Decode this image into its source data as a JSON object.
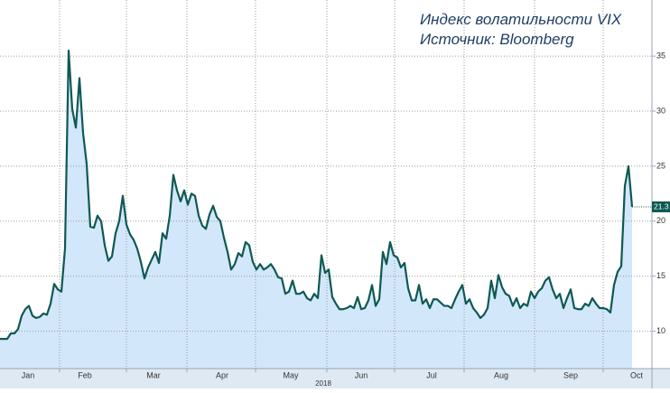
{
  "chart_data": {
    "type": "area",
    "title": "Индекс волатильности VIX",
    "subtitle": "Источник: Bloomberg",
    "xlabel": "2018",
    "color": "#0e5953",
    "fill": "#d3e7fb",
    "y_axis_side": "right",
    "grid": true,
    "ylim": [
      6.6,
      40.1
    ],
    "yticks": [
      10,
      15,
      20,
      25,
      30,
      35
    ],
    "xlim": [
      0,
      180.5
    ],
    "xticks": [
      {
        "value": 7.75,
        "label": "Jan"
      },
      {
        "value": 23.5,
        "label": "Feb"
      },
      {
        "value": 42.5,
        "label": "Mar"
      },
      {
        "value": 61.5,
        "label": "Apr"
      },
      {
        "value": 80.5,
        "label": "May"
      },
      {
        "value": 100,
        "label": "Jun"
      },
      {
        "value": 119.5,
        "label": "Jul"
      },
      {
        "value": 138.75,
        "label": "Aug"
      },
      {
        "value": 158,
        "label": "Sep"
      },
      {
        "value": 176.25,
        "label": "Oct"
      }
    ],
    "xgrid": [
      16.5,
      35,
      51.75,
      70.75,
      90.5,
      109.25,
      128.5,
      148,
      167
    ],
    "values": [
      9.3,
      9.3,
      9.3,
      9.8,
      9.8,
      10.2,
      11.4,
      12.0,
      12.3,
      11.4,
      11.2,
      11.3,
      11.6,
      11.5,
      12.5,
      14.3,
      13.8,
      13.6,
      17.5,
      35.5,
      30.2,
      28.5,
      33,
      28,
      25.2,
      19.5,
      19.4,
      20.5,
      20.0,
      17.8,
      16.4,
      16.8,
      18.9,
      20,
      22.3,
      19.7,
      18.8,
      18.3,
      17.5,
      16.3,
      14.8,
      15.8,
      16.5,
      17.2,
      16.2,
      18.9,
      18.4,
      20.5,
      24.2,
      22.8,
      21.8,
      22.8,
      21.5,
      22.5,
      22.3,
      20.5,
      19.6,
      19.3,
      20.6,
      21.4,
      20.4,
      20.0,
      18.5,
      17.2,
      15.6,
      16.1,
      17.1,
      16.8,
      18.1,
      17.8,
      16.3,
      15.6,
      16.1,
      15.6,
      15.8,
      16.1,
      15.6,
      14.9,
      14.8,
      13.4,
      13.6,
      14.6,
      13.4,
      13.4,
      13.6,
      13.0,
      12.8,
      13.4,
      13.0,
      16.9,
      15.3,
      15.6,
      13.1,
      12.5,
      12.0,
      12.0,
      12.1,
      12.3,
      12.1,
      13.1,
      12.0,
      12.1,
      12.8,
      14.2,
      12.3,
      12.9,
      17.2,
      16.1,
      18.1,
      16.9,
      16.7,
      15.8,
      16.2,
      13.9,
      12.8,
      12.8,
      14.2,
      12.5,
      12.9,
      12.1,
      12.9,
      12.9,
      12.6,
      12.3,
      12.3,
      12.1,
      12.9,
      13.6,
      14.2,
      12.5,
      12.9,
      12.1,
      11.7,
      11.2,
      11.5,
      12.1,
      14.6,
      13.0,
      15.1,
      14.0,
      13.4,
      13.2,
      12.3,
      13.0,
      12.1,
      12.5,
      12.3,
      13.6,
      13.0,
      13.6,
      13.9,
      14.6,
      14.9,
      13.8,
      13.0,
      13.4,
      12.1,
      13.0,
      13.8,
      12.1,
      12.0,
      12.0,
      12.5,
      12.3,
      13.0,
      12.5,
      12.1,
      12.1,
      12.0,
      11.7,
      14.2,
      15.4,
      15.9,
      23.2,
      25.0,
      21.3
    ]
  }
}
